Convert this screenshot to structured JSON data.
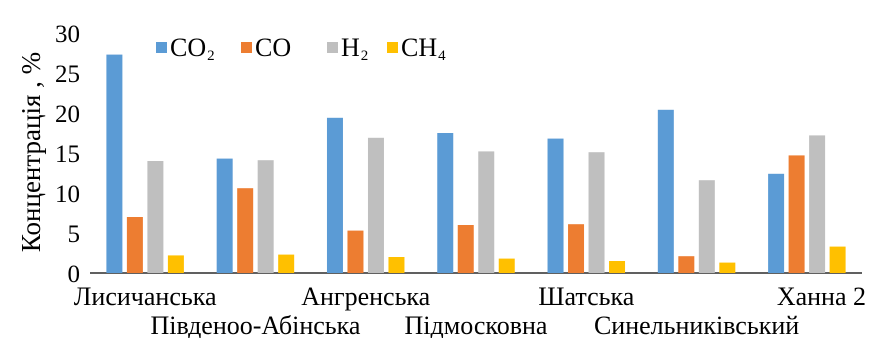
{
  "chart_data": {
    "type": "bar",
    "ylabel": "Концентрація , %",
    "ylim": [
      0,
      30
    ],
    "yticks": [
      0,
      5,
      10,
      15,
      20,
      25,
      30
    ],
    "grid": false,
    "legend_position": "top-left",
    "categories": [
      "Лисичанська",
      "Південоо-Абінська",
      "Ангренська",
      "Підмосковна",
      "Шатська",
      "Синельниківський",
      "Ханна 2"
    ],
    "series": [
      {
        "name": "CO",
        "subscript": "2",
        "color": "#5b9bd5",
        "values": [
          27.3,
          14.3,
          19.4,
          17.5,
          16.8,
          20.4,
          12.4
        ]
      },
      {
        "name": "CO",
        "subscript": "",
        "color": "#ed7d31",
        "values": [
          7.0,
          10.6,
          5.3,
          6.0,
          6.1,
          2.1,
          14.7
        ]
      },
      {
        "name": "H",
        "subscript": "2",
        "color": "#bfbfbf",
        "values": [
          14.0,
          14.1,
          16.9,
          15.2,
          15.1,
          11.6,
          17.2
        ]
      },
      {
        "name": "CH",
        "subscript": "4",
        "color": "#ffc000",
        "values": [
          2.2,
          2.3,
          2.0,
          1.8,
          1.5,
          1.3,
          3.3
        ]
      }
    ]
  }
}
